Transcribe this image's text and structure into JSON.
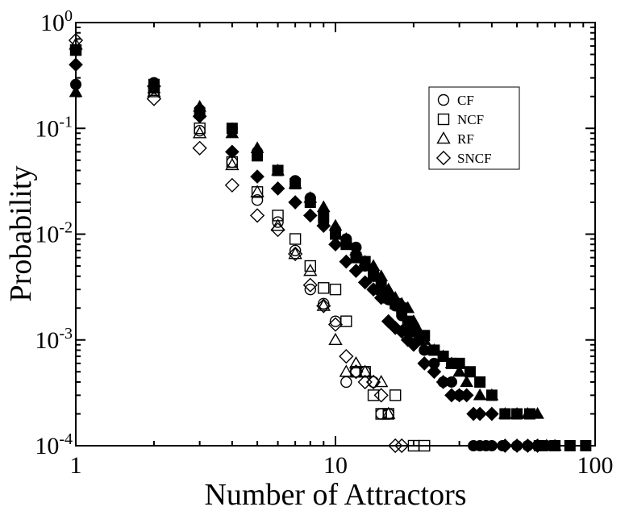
{
  "chart_data": {
    "type": "scatter",
    "xlabel": "Number of Attractors",
    "ylabel": "Probability",
    "x_scale": "log",
    "y_scale": "log",
    "xlim": [
      1,
      100
    ],
    "ylim": [
      0.0001,
      1
    ],
    "x_ticks": [
      {
        "value": 1,
        "label": "1"
      },
      {
        "value": 10,
        "label": "10"
      },
      {
        "value": 100,
        "label": "100"
      }
    ],
    "y_ticks": [
      {
        "value": 0.0001,
        "base": "10",
        "exp": "-4"
      },
      {
        "value": 0.001,
        "base": "10",
        "exp": "-3"
      },
      {
        "value": 0.01,
        "base": "10",
        "exp": "-2"
      },
      {
        "value": 0.1,
        "base": "10",
        "exp": "-1"
      },
      {
        "value": 1,
        "base": "10",
        "exp": "0"
      }
    ],
    "legend": {
      "position": "top-right"
    },
    "series": [
      {
        "name": "CF",
        "marker": "circle",
        "hollow": [
          [
            1,
            0.55
          ],
          [
            2,
            0.24
          ],
          [
            3,
            0.095
          ],
          [
            4,
            0.048
          ],
          [
            5,
            0.021
          ],
          [
            6,
            0.013
          ],
          [
            7,
            0.007
          ],
          [
            8,
            0.003
          ],
          [
            9,
            0.0022
          ],
          [
            10,
            0.0015
          ],
          [
            11,
            0.0004
          ],
          [
            12,
            0.0005
          ],
          [
            13,
            0.0005
          ],
          [
            14,
            0.0004
          ],
          [
            15,
            0.0002
          ],
          [
            16,
            0.0002
          ]
        ],
        "filled": [
          [
            1,
            0.26
          ],
          [
            2,
            0.27
          ],
          [
            3,
            0.15
          ],
          [
            4,
            0.1
          ],
          [
            5,
            0.06
          ],
          [
            6,
            0.04
          ],
          [
            7,
            0.032
          ],
          [
            8,
            0.022
          ],
          [
            9,
            0.013
          ],
          [
            10,
            0.011
          ],
          [
            11,
            0.009
          ],
          [
            12,
            0.0075
          ],
          [
            13,
            0.005
          ],
          [
            14,
            0.004
          ],
          [
            15,
            0.0035
          ],
          [
            16,
            0.0024
          ],
          [
            17,
            0.0021
          ],
          [
            18,
            0.0017
          ],
          [
            19,
            0.0012
          ],
          [
            20,
            0.0012
          ],
          [
            22,
            0.0008
          ],
          [
            24,
            0.0006
          ],
          [
            26,
            0.0004
          ],
          [
            28,
            0.0004
          ],
          [
            30,
            0.0003
          ],
          [
            34,
            0.0001
          ],
          [
            36,
            0.0001
          ],
          [
            38,
            0.0001
          ],
          [
            40,
            0.0001
          ],
          [
            44,
            0.0001
          ],
          [
            50,
            0.0001
          ],
          [
            55,
            0.0001
          ],
          [
            60,
            0.0001
          ],
          [
            65,
            0.0001
          ],
          [
            70,
            0.0001
          ]
        ]
      },
      {
        "name": "NCF",
        "marker": "square",
        "hollow": [
          [
            1,
            0.55
          ],
          [
            2,
            0.23
          ],
          [
            3,
            0.1
          ],
          [
            4,
            0.048
          ],
          [
            5,
            0.025
          ],
          [
            6,
            0.015
          ],
          [
            7,
            0.009
          ],
          [
            8,
            0.005
          ],
          [
            9,
            0.0031
          ],
          [
            10,
            0.003
          ],
          [
            11,
            0.0015
          ],
          [
            12,
            0.0005
          ],
          [
            13,
            0.0005
          ],
          [
            14,
            0.0003
          ],
          [
            15,
            0.0002
          ],
          [
            16,
            0.0002
          ],
          [
            17,
            0.0003
          ],
          [
            20,
            0.0001
          ],
          [
            22,
            0.0001
          ]
        ],
        "filled": [
          [
            1,
            0.55
          ],
          [
            2,
            0.26
          ],
          [
            3,
            0.14
          ],
          [
            4,
            0.1
          ],
          [
            5,
            0.055
          ],
          [
            6,
            0.04
          ],
          [
            7,
            0.03
          ],
          [
            8,
            0.02
          ],
          [
            9,
            0.015
          ],
          [
            10,
            0.01
          ],
          [
            11,
            0.008
          ],
          [
            12,
            0.006
          ],
          [
            13,
            0.0055
          ],
          [
            14,
            0.004
          ],
          [
            15,
            0.003
          ],
          [
            16,
            0.0025
          ],
          [
            17,
            0.0022
          ],
          [
            18,
            0.002
          ],
          [
            19,
            0.0015
          ],
          [
            20,
            0.0012
          ],
          [
            21,
            0.001
          ],
          [
            22,
            0.0011
          ],
          [
            24,
            0.0008
          ],
          [
            26,
            0.0007
          ],
          [
            28,
            0.0006
          ],
          [
            30,
            0.0006
          ],
          [
            33,
            0.0005
          ],
          [
            36,
            0.0004
          ],
          [
            40,
            0.0003
          ],
          [
            45,
            0.0002
          ],
          [
            50,
            0.0002
          ],
          [
            56,
            0.0002
          ],
          [
            61,
            0.0001
          ],
          [
            70,
            0.0001
          ],
          [
            80,
            0.0001
          ],
          [
            92,
            0.0001
          ]
        ]
      },
      {
        "name": "RF",
        "marker": "triangle",
        "hollow": [
          [
            1,
            0.62
          ],
          [
            2,
            0.22
          ],
          [
            3,
            0.09
          ],
          [
            4,
            0.045
          ],
          [
            5,
            0.025
          ],
          [
            6,
            0.012
          ],
          [
            7,
            0.0065
          ],
          [
            8,
            0.0045
          ],
          [
            9,
            0.0021
          ],
          [
            10,
            0.001
          ],
          [
            11,
            0.0005
          ],
          [
            12,
            0.0006
          ],
          [
            13,
            0.0005
          ],
          [
            15,
            0.0004
          ],
          [
            16,
            0.0002
          ]
        ],
        "filled": [
          [
            1,
            0.22
          ],
          [
            2,
            0.24
          ],
          [
            3,
            0.16
          ],
          [
            4,
            0.09
          ],
          [
            5,
            0.065
          ],
          [
            6,
            0.04
          ],
          [
            7,
            0.03
          ],
          [
            8,
            0.022
          ],
          [
            9,
            0.018
          ],
          [
            10,
            0.012
          ],
          [
            11,
            0.009
          ],
          [
            12,
            0.007
          ],
          [
            13,
            0.0055
          ],
          [
            14,
            0.005
          ],
          [
            15,
            0.004
          ],
          [
            16,
            0.003
          ],
          [
            17,
            0.0025
          ],
          [
            18,
            0.0022
          ],
          [
            19,
            0.002
          ],
          [
            20,
            0.0015
          ],
          [
            21,
            0.0012
          ],
          [
            22,
            0.001
          ],
          [
            24,
            0.0008
          ],
          [
            26,
            0.0007
          ],
          [
            28,
            0.0006
          ],
          [
            30,
            0.0005
          ],
          [
            32,
            0.0004
          ],
          [
            36,
            0.0003
          ],
          [
            40,
            0.0003
          ],
          [
            45,
            0.0002
          ],
          [
            50,
            0.0002
          ],
          [
            55,
            0.0002
          ],
          [
            60,
            0.0002
          ],
          [
            65,
            0.0001
          ],
          [
            70,
            0.0001
          ]
        ]
      },
      {
        "name": "SNCF",
        "marker": "diamond",
        "hollow": [
          [
            1,
            0.68
          ],
          [
            2,
            0.19
          ],
          [
            3,
            0.065
          ],
          [
            4,
            0.029
          ],
          [
            5,
            0.015
          ],
          [
            6,
            0.011
          ],
          [
            7,
            0.0065
          ],
          [
            8,
            0.0033
          ],
          [
            9,
            0.0021
          ],
          [
            10,
            0.0014
          ],
          [
            11,
            0.0007
          ],
          [
            12,
            0.0005
          ],
          [
            13,
            0.0004
          ],
          [
            14,
            0.0004
          ],
          [
            15,
            0.0003
          ],
          [
            17,
            0.0001
          ],
          [
            18,
            0.0001
          ]
        ],
        "filled": [
          [
            1,
            0.4
          ],
          [
            2,
            0.25
          ],
          [
            3,
            0.13
          ],
          [
            4,
            0.06
          ],
          [
            5,
            0.035
          ],
          [
            6,
            0.027
          ],
          [
            7,
            0.02
          ],
          [
            8,
            0.015
          ],
          [
            9,
            0.012
          ],
          [
            10,
            0.008
          ],
          [
            11,
            0.0055
          ],
          [
            12,
            0.0045
          ],
          [
            13,
            0.0035
          ],
          [
            14,
            0.003
          ],
          [
            15,
            0.0025
          ],
          [
            16,
            0.0015
          ],
          [
            17,
            0.0013
          ],
          [
            18,
            0.0012
          ],
          [
            19,
            0.001
          ],
          [
            20,
            0.0009
          ],
          [
            22,
            0.0006
          ],
          [
            24,
            0.0005
          ],
          [
            26,
            0.0004
          ],
          [
            28,
            0.0003
          ],
          [
            30,
            0.0003
          ],
          [
            32,
            0.0003
          ],
          [
            34,
            0.0002
          ],
          [
            36,
            0.0002
          ],
          [
            40,
            0.0002
          ],
          [
            45,
            0.0001
          ],
          [
            50,
            0.0001
          ],
          [
            55,
            0.0001
          ],
          [
            60,
            0.0001
          ]
        ]
      }
    ]
  }
}
